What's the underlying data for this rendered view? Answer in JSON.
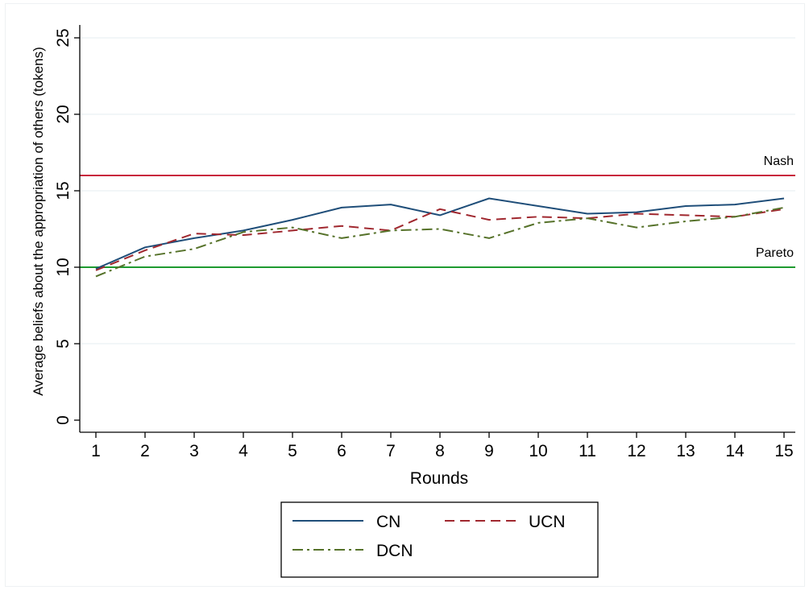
{
  "chart_data": {
    "type": "line",
    "title": "",
    "xlabel": "Rounds",
    "ylabel": "Average beliefs about the appropriation of others (tokens)",
    "x": [
      1,
      2,
      3,
      4,
      5,
      6,
      7,
      8,
      9,
      10,
      11,
      12,
      13,
      14,
      15
    ],
    "xlim": [
      1,
      15
    ],
    "ylim": [
      0,
      25
    ],
    "y_ticks": [
      0,
      5,
      10,
      15,
      20,
      25
    ],
    "grid": "horizontal",
    "series": [
      {
        "name": "CN",
        "color": "#1f4e79",
        "dash": "solid",
        "values": [
          9.9,
          11.3,
          11.9,
          12.4,
          13.1,
          13.9,
          14.1,
          13.4,
          14.5,
          14.0,
          13.5,
          13.6,
          14.0,
          14.1,
          14.5
        ]
      },
      {
        "name": "UCN",
        "color": "#a0282f",
        "dash": "dash",
        "values": [
          9.8,
          11.1,
          12.2,
          12.1,
          12.4,
          12.7,
          12.4,
          13.8,
          13.1,
          13.3,
          13.2,
          13.5,
          13.4,
          13.3,
          13.8
        ]
      },
      {
        "name": "DCN",
        "color": "#56722a",
        "dash": "dashdot",
        "values": [
          9.4,
          10.7,
          11.2,
          12.3,
          12.6,
          11.9,
          12.4,
          12.5,
          11.9,
          12.9,
          13.2,
          12.6,
          13.0,
          13.3,
          13.9
        ]
      }
    ],
    "reference_lines": [
      {
        "label": "Nash",
        "value": 16,
        "color": "#c8243c"
      },
      {
        "label": "Pareto",
        "value": 10,
        "color": "#1e9a30"
      }
    ],
    "legend": {
      "placement": "bottom",
      "entries": [
        "CN",
        "UCN",
        "DCN"
      ]
    }
  }
}
